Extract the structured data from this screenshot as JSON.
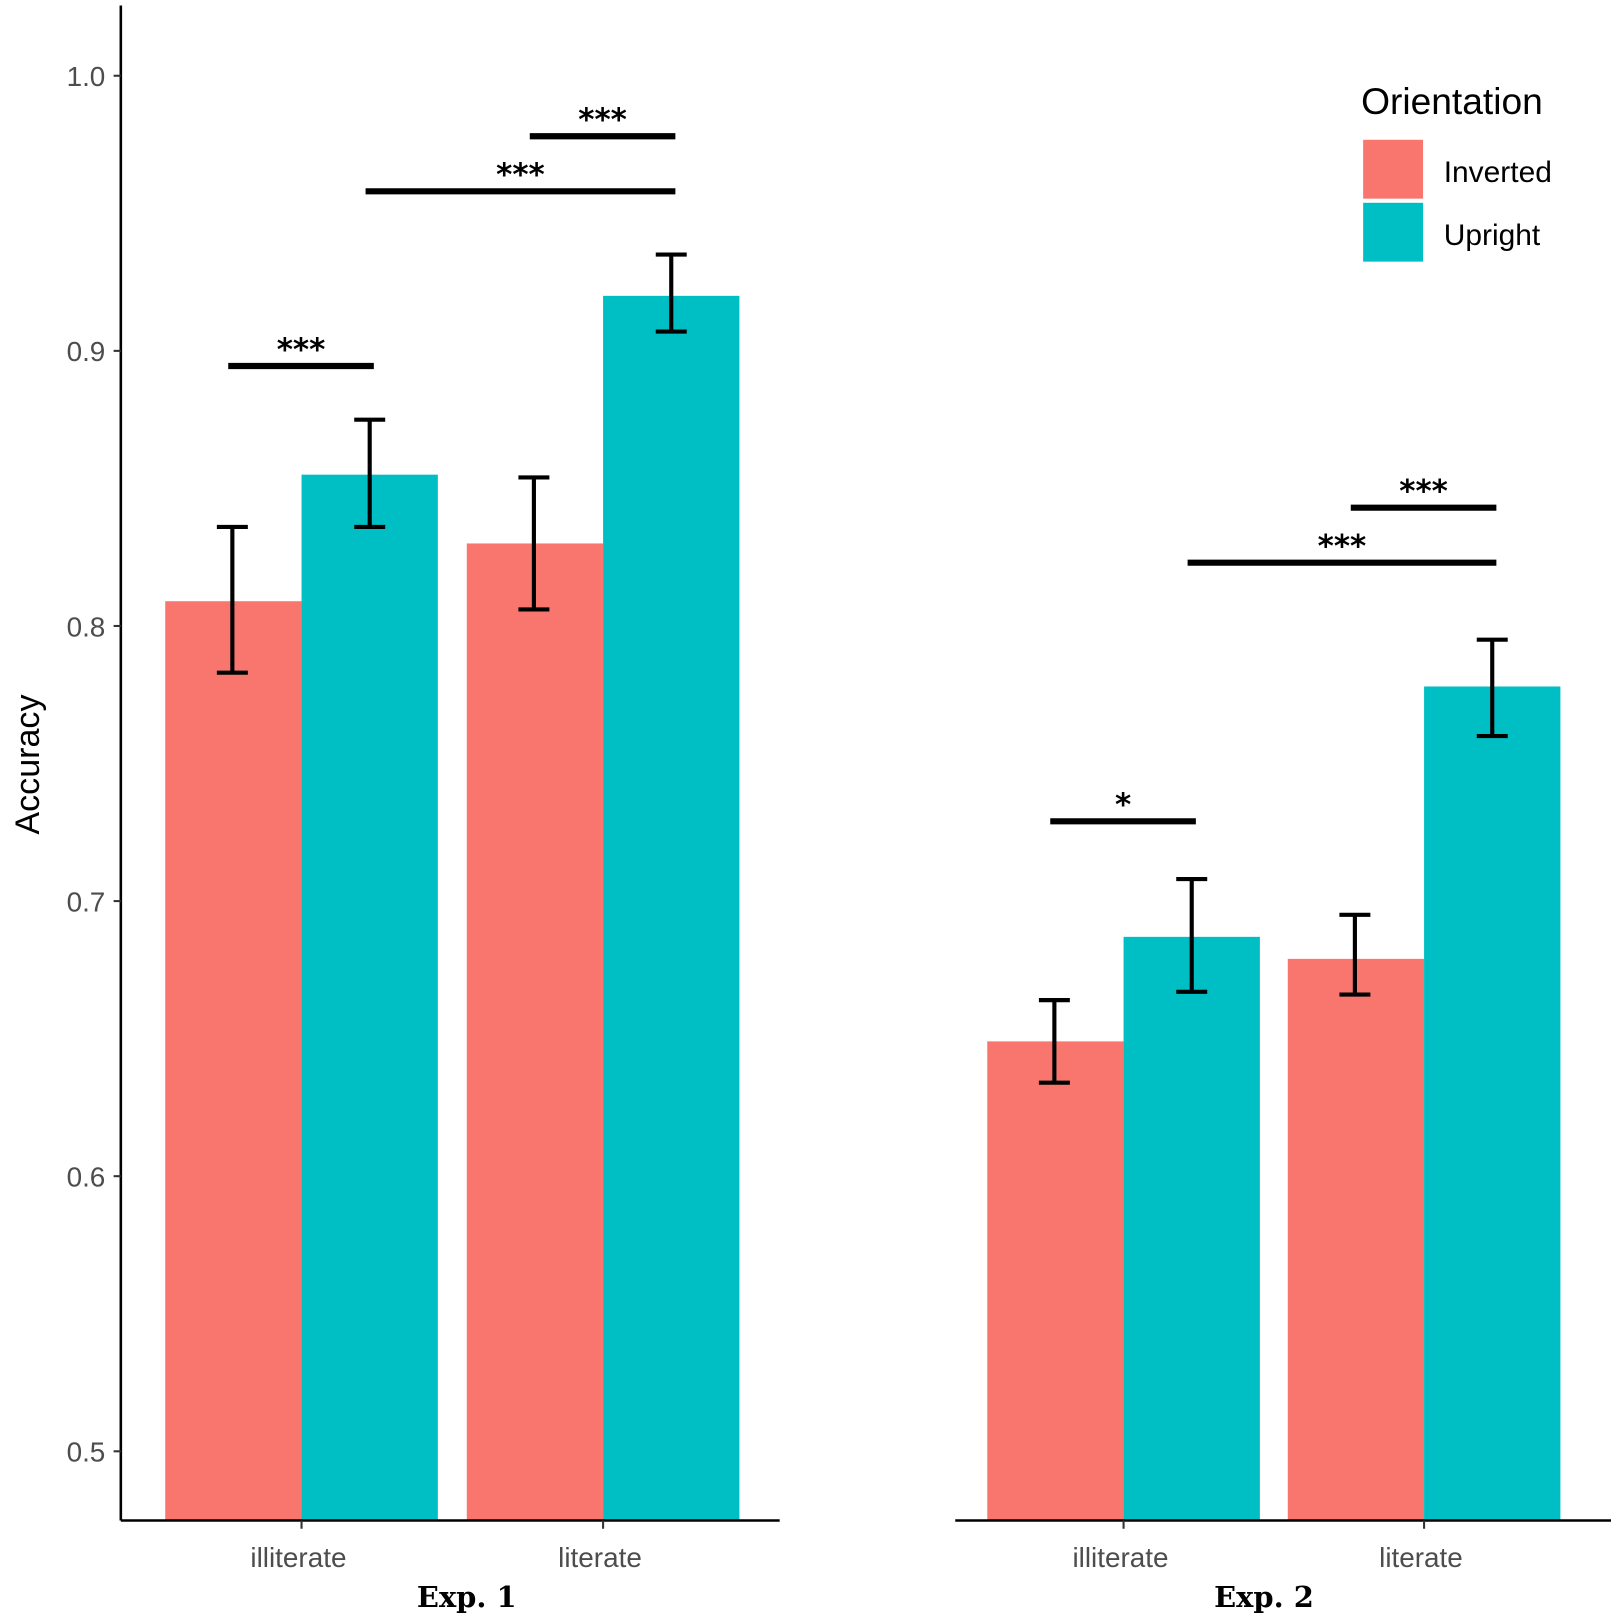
{
  "chart_data": {
    "type": "bar",
    "ylabel": "Accuracy",
    "ylim": [
      0.475,
      1.025
    ],
    "yticks": [
      "0.5",
      "0.6",
      "0.7",
      "0.8",
      "0.9",
      "1.0"
    ],
    "grid": false,
    "legend": {
      "title": "Orientation",
      "position": "top-right",
      "entries": [
        "Inverted",
        "Upright"
      ]
    },
    "colors": {
      "Inverted": "#F8766D",
      "Upright": "#00BFC4"
    },
    "panels": [
      {
        "title": "Exp. 1",
        "categories": [
          "illiterate",
          "literate"
        ],
        "series": [
          {
            "name": "Inverted",
            "values": [
              0.809,
              0.83
            ],
            "err_low": [
              0.783,
              0.806
            ],
            "err_high": [
              0.836,
              0.854
            ]
          },
          {
            "name": "Upright",
            "values": [
              0.855,
              0.92
            ],
            "err_low": [
              0.836,
              0.907
            ],
            "err_high": [
              0.875,
              0.935
            ]
          }
        ],
        "significance": [
          {
            "from": [
              0,
              "Inverted"
            ],
            "to": [
              0,
              "Upright"
            ],
            "y": 0.8945,
            "label": "***"
          },
          {
            "from": [
              0,
              "Upright"
            ],
            "to": [
              1,
              "Upright"
            ],
            "y": 0.958,
            "label": "***"
          },
          {
            "from": [
              1,
              "Inverted"
            ],
            "to": [
              1,
              "Upright"
            ],
            "y": 0.978,
            "label": "***"
          }
        ]
      },
      {
        "title": "Exp. 2",
        "categories": [
          "illiterate",
          "literate"
        ],
        "series": [
          {
            "name": "Inverted",
            "values": [
              0.649,
              0.679
            ],
            "err_low": [
              0.634,
              0.666
            ],
            "err_high": [
              0.664,
              0.695
            ]
          },
          {
            "name": "Upright",
            "values": [
              0.687,
              0.778
            ],
            "err_low": [
              0.667,
              0.76
            ],
            "err_high": [
              0.708,
              0.795
            ]
          }
        ],
        "significance": [
          {
            "from": [
              0,
              "Inverted"
            ],
            "to": [
              0,
              "Upright"
            ],
            "y": 0.729,
            "label": "*"
          },
          {
            "from": [
              0,
              "Upright"
            ],
            "to": [
              1,
              "Upright"
            ],
            "y": 0.823,
            "label": "***"
          },
          {
            "from": [
              1,
              "Inverted"
            ],
            "to": [
              1,
              "Upright"
            ],
            "y": 0.843,
            "label": "***"
          }
        ]
      }
    ]
  }
}
